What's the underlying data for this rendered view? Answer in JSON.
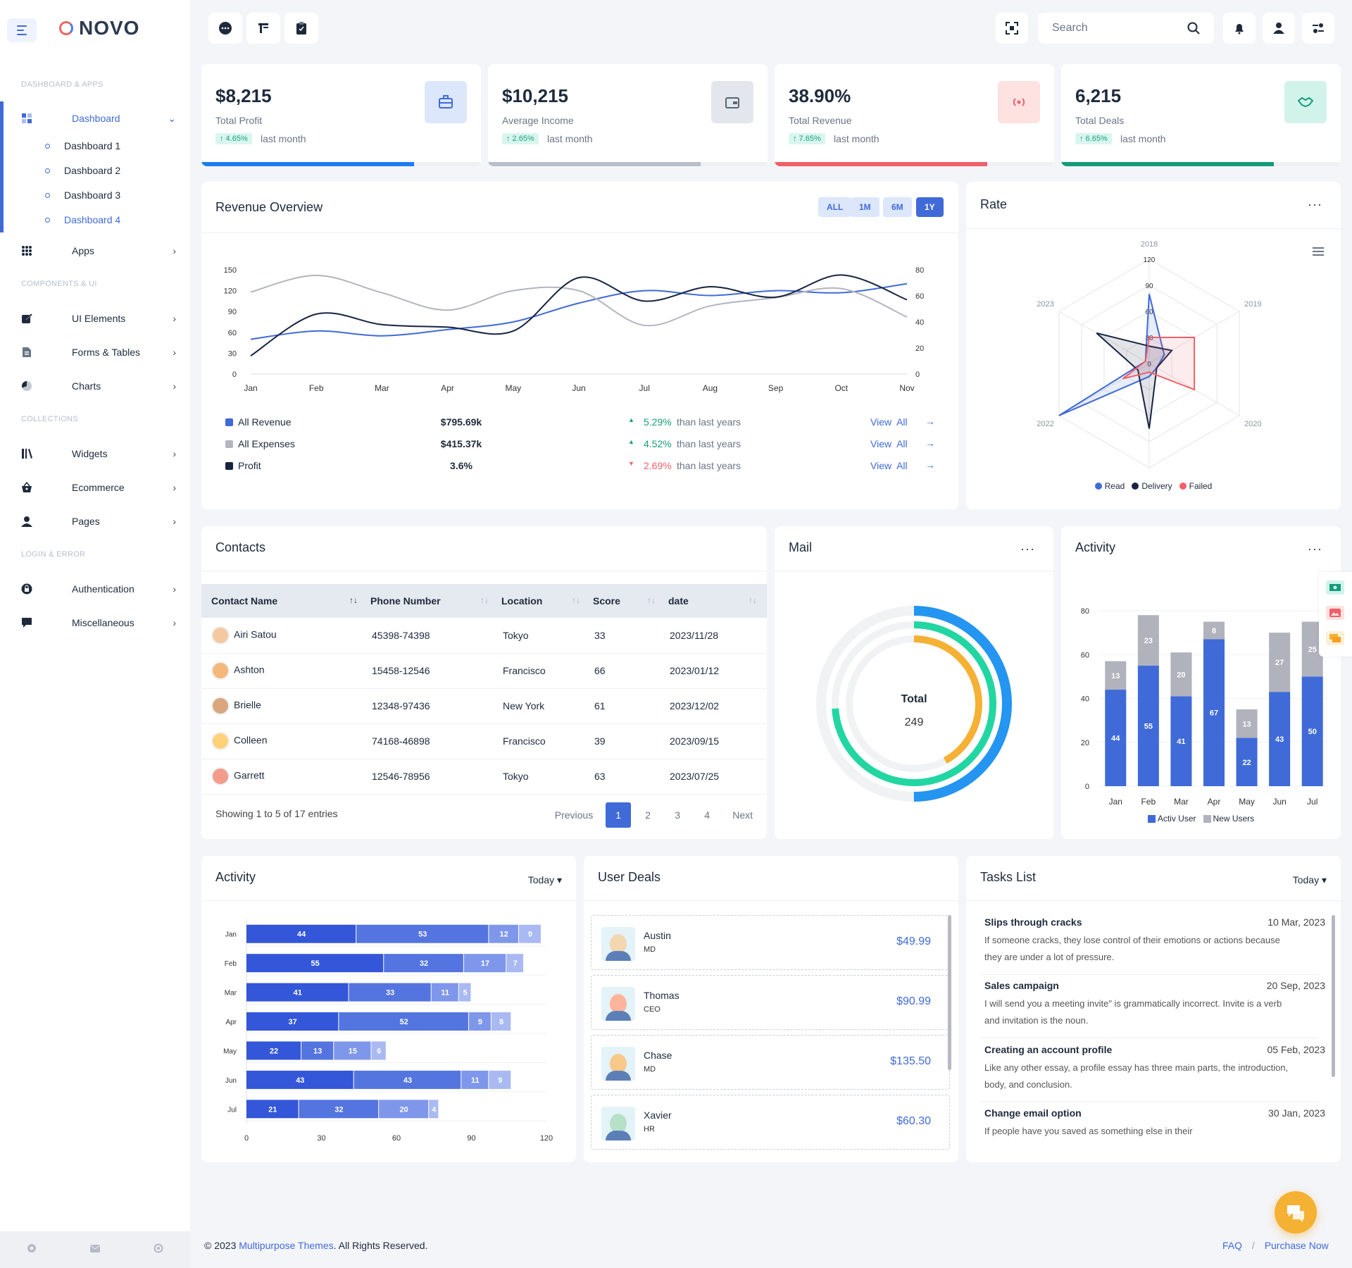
{
  "brand": {
    "name": "NOVO"
  },
  "sidebar": {
    "sections": [
      "DASHBOARD & APPS",
      "COMPONENTS & UI",
      "COLLECTIONS",
      "LOGIN & ERROR"
    ],
    "items": [
      {
        "label": "Dashboard",
        "icon": "grid-icon"
      },
      {
        "label": "Apps",
        "icon": "apps-icon"
      },
      {
        "label": "UI Elements",
        "icon": "edit-icon"
      },
      {
        "label": "Forms & Tables",
        "icon": "file-icon"
      },
      {
        "label": "Charts",
        "icon": "pie-icon"
      },
      {
        "label": "Widgets",
        "icon": "books-icon"
      },
      {
        "label": "Ecommerce",
        "icon": "basket-icon"
      },
      {
        "label": "Pages",
        "icon": "user-icon"
      },
      {
        "label": "Authentication",
        "icon": "lock-icon"
      },
      {
        "label": "Miscellaneous",
        "icon": "chat-icon"
      }
    ],
    "subitems": [
      "Dashboard 1",
      "Dashboard 2",
      "Dashboard 3",
      "Dashboard 4"
    ],
    "active_sub": "Dashboard 4"
  },
  "topbar": {
    "search_placeholder": "Search"
  },
  "kpis": [
    {
      "value": "$8,215",
      "label": "Total Profit",
      "change": "↑ 4.65%",
      "suffix": "last month",
      "color": "#1e7cf0",
      "progress": 0.76,
      "icon": "briefcase-icon",
      "icon_bg": "#dde7fb",
      "icon_color": "#3f6ad8"
    },
    {
      "value": "$10,215",
      "label": "Average Income",
      "change": "↑ 2.65%",
      "suffix": "last month",
      "color": "#b9bfca",
      "progress": 0.76,
      "icon": "wallet-icon",
      "icon_bg": "#e3e6ec",
      "icon_color": "#5a6474"
    },
    {
      "value": "38.90%",
      "label": "Total Revenue",
      "change": "↑ 7.65%",
      "suffix": "last month",
      "color": "#f0606a",
      "progress": 0.76,
      "icon": "broadcast-icon",
      "icon_bg": "#fde2e1",
      "icon_color": "#f0606a"
    },
    {
      "value": "6,215",
      "label": "Total Deals",
      "change": "↑ 6.65%",
      "suffix": "last month",
      "color": "#139c7a",
      "progress": 0.76,
      "icon": "handshake-icon",
      "icon_bg": "#d2f3ea",
      "icon_color": "#139c7a"
    }
  ],
  "revenue": {
    "title": "Revenue Overview",
    "filters": [
      "ALL",
      "1M",
      "6M",
      "1Y"
    ],
    "active_filter": "1Y",
    "rows": [
      {
        "name": "All Revenue",
        "value": "$795.69k",
        "pct": "5.29%",
        "text": "than last years",
        "trend": "up",
        "color": "#3f6ad8"
      },
      {
        "name": "All Expenses",
        "value": "$415.37k",
        "pct": "4.52%",
        "text": "than last years",
        "trend": "up",
        "color": "#b3b5bf"
      },
      {
        "name": "Profit",
        "value": "3.6%",
        "pct": "2.69%",
        "text": "than last years",
        "trend": "down",
        "color": "#172340"
      }
    ],
    "link": "View  All"
  },
  "rate": {
    "title": "Rate",
    "legend": [
      "Read",
      "Delivery",
      "Failed"
    ]
  },
  "contacts": {
    "title": "Contacts",
    "columns": [
      "Contact Name",
      "Phone Number",
      "Location",
      "Score",
      "date"
    ],
    "rows": [
      {
        "name": "Airi Satou",
        "phone": "45398-74398",
        "location": "Tokyo",
        "score": "33",
        "date": "2023/11/28"
      },
      {
        "name": "Ashton",
        "phone": "15458-12546",
        "location": "Francisco",
        "score": "66",
        "date": "2023/01/12"
      },
      {
        "name": "Brielle",
        "phone": "12348-97436",
        "location": "New York",
        "score": "61",
        "date": "2023/12/02"
      },
      {
        "name": "Colleen",
        "phone": "74168-46898",
        "location": "Francisco",
        "score": "39",
        "date": "2023/09/15"
      },
      {
        "name": "Garrett",
        "phone": "12546-78956",
        "location": "Tokyo",
        "score": "63",
        "date": "2023/07/25"
      }
    ],
    "info": "Showing 1 to 5 of 17 entries",
    "pagination": {
      "prev": "Previous",
      "pages": [
        "1",
        "2",
        "3",
        "4"
      ],
      "current": "1",
      "next": "Next"
    }
  },
  "mail": {
    "title": "Mail",
    "center_label": "Total",
    "center_value": "249"
  },
  "activity_top": {
    "title": "Activity"
  },
  "activity_bottom": {
    "title": "Activity",
    "filter": "Today"
  },
  "deals": {
    "title": "User Deals",
    "items": [
      {
        "name": "Austin",
        "role": "MD",
        "amount": "$49.99"
      },
      {
        "name": "Thomas",
        "role": "CEO",
        "amount": "$90.99"
      },
      {
        "name": "Chase",
        "role": "MD",
        "amount": "$135.50"
      },
      {
        "name": "Xavier",
        "role": "HR",
        "amount": "$60.30"
      }
    ]
  },
  "tasks": {
    "title": "Tasks List",
    "filter": "Today",
    "items": [
      {
        "title": "Slips through cracks",
        "date": "10 Mar, 2023",
        "desc": "If someone cracks, they lose control of their emotions or actions because they are under a lot of pressure."
      },
      {
        "title": "Sales campaign",
        "date": "20 Sep, 2023",
        "desc": "I will send you a meeting invite\" is grammatically incorrect. Invite is a verb and invitation is the noun."
      },
      {
        "title": "Creating an account profile",
        "date": "05 Feb, 2023",
        "desc": "Like any other essay, a profile essay has three main parts, the introduction, body, and conclusion."
      },
      {
        "title": "Change email option",
        "date": "30 Jan, 2023",
        "desc": "If people have you saved as something else in their"
      }
    ]
  },
  "footer": {
    "copy_pre": "© 2023 ",
    "copy_link": "Multipurpose Themes",
    "copy_post": ". All Rights Reserved.",
    "links": [
      "FAQ",
      "Purchase Now"
    ]
  },
  "chart_data": [
    {
      "type": "line",
      "title": "Revenue Overview",
      "categories": [
        "Jan",
        "Feb",
        "Mar",
        "Apr",
        "May",
        "Jun",
        "Jul",
        "Aug",
        "Sep",
        "Oct",
        "Nov"
      ],
      "ylim_left": [
        0,
        150
      ],
      "yticks_left": [
        0,
        30,
        60,
        90,
        120,
        150
      ],
      "ylim_right": [
        0,
        80
      ],
      "yticks_right": [
        0,
        20,
        40,
        60,
        80
      ],
      "series": [
        {
          "name": "All Revenue",
          "axis": "left",
          "color": "#3f6ad8",
          "values": [
            50,
            62,
            55,
            64,
            75,
            102,
            120,
            113,
            120,
            117,
            130
          ]
        },
        {
          "name": "All Expenses",
          "axis": "left",
          "color": "#b3b5bf",
          "values": [
            118,
            142,
            117,
            92,
            120,
            120,
            70,
            98,
            110,
            123,
            82
          ]
        },
        {
          "name": "Profit",
          "axis": "right",
          "color": "#172340",
          "values": [
            14,
            46,
            38,
            36,
            33,
            74,
            56,
            67,
            59,
            76,
            57
          ]
        }
      ]
    },
    {
      "type": "radar",
      "title": "Rate",
      "categories": [
        "2018",
        "2019",
        "2020",
        "2021",
        "2022",
        "2023"
      ],
      "rticks": [
        0,
        30,
        60,
        90,
        120
      ],
      "rmax": 120,
      "series": [
        {
          "name": "Read",
          "color": "#3f6ad8",
          "values": [
            80,
            20,
            10,
            15,
            120,
            5
          ]
        },
        {
          "name": "Delivery",
          "color": "#172340",
          "values": [
            20,
            30,
            10,
            75,
            15,
            70
          ]
        },
        {
          "name": "Failed",
          "color": "#f0606a",
          "values": [
            30,
            60,
            60,
            10,
            35,
            5
          ]
        }
      ]
    },
    {
      "type": "radial",
      "title": "Mail",
      "total": 249,
      "series": [
        {
          "color": "#2495f0",
          "value": 0.5
        },
        {
          "color": "#22d6a2",
          "value": 0.74
        },
        {
          "color": "#f5b133",
          "value": 0.42
        }
      ]
    },
    {
      "type": "bar",
      "stacked": true,
      "title": "Activity",
      "categories": [
        "Jan",
        "Feb",
        "Mar",
        "Apr",
        "May",
        "Jun",
        "Jul"
      ],
      "ylim": [
        0,
        80
      ],
      "yticks": [
        0,
        20,
        40,
        60,
        80
      ],
      "series": [
        {
          "name": "Activ User",
          "color": "#3f6ad8",
          "values": [
            44,
            55,
            41,
            67,
            22,
            43,
            50
          ]
        },
        {
          "name": "New Users",
          "color": "#b0b2bc",
          "values": [
            13,
            23,
            20,
            8,
            13,
            27,
            25
          ]
        }
      ]
    },
    {
      "type": "bar",
      "orientation": "horizontal",
      "stacked": true,
      "title": "Activity",
      "categories": [
        "Jan",
        "Feb",
        "Mar",
        "Apr",
        "May",
        "Jun",
        "Jul"
      ],
      "xlim": [
        0,
        120
      ],
      "xticks": [
        0,
        30,
        60,
        90,
        120
      ],
      "series": [
        {
          "color": "#3456d8",
          "values": [
            44,
            55,
            41,
            37,
            22,
            43,
            21
          ]
        },
        {
          "color": "#5474e0",
          "values": [
            53,
            32,
            33,
            52,
            13,
            43,
            32
          ]
        },
        {
          "color": "#7f97ea",
          "values": [
            12,
            17,
            11,
            9,
            15,
            11,
            20
          ]
        },
        {
          "color": "#a9b9f2",
          "values": [
            9,
            7,
            5,
            8,
            6,
            9,
            4
          ]
        }
      ]
    }
  ]
}
